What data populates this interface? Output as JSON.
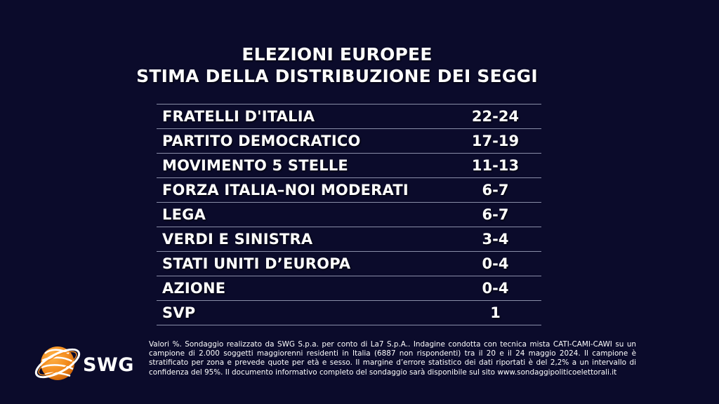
{
  "title": {
    "line1": "ELEZIONI EUROPEE",
    "line2": "STIMA DELLA DISTRIBUZIONE DEI SEGGI"
  },
  "rows": [
    {
      "party": "FRATELLI D'ITALIA",
      "seats": "22-24"
    },
    {
      "party": "PARTITO DEMOCRATICO",
      "seats": "17-19"
    },
    {
      "party": "MOVIMENTO 5 STELLE",
      "seats": "11-13"
    },
    {
      "party": "FORZA ITALIA–NOI MODERATI",
      "seats": "6-7"
    },
    {
      "party": "LEGA",
      "seats": "6-7"
    },
    {
      "party": "VERDI E SINISTRA",
      "seats": "3-4"
    },
    {
      "party": "STATI UNITI D’EUROPA",
      "seats": "0-4"
    },
    {
      "party": "AZIONE",
      "seats": "0-4"
    },
    {
      "party": "SVP",
      "seats": "1"
    }
  ],
  "logo": {
    "text": "SWG",
    "icon": "swg-globe-icon",
    "colors": {
      "orange": "#f28a1c",
      "white": "#ffffff"
    }
  },
  "footnote": "Valori %. Sondaggio realizzato da SWG S.p.a. per conto di La7 S.p.A.. Indagine condotta con tecnica mista CATI-CAMI-CAWI su un campione di 2.000 soggetti maggiorenni residenti in Italia (6887 non rispondenti) tra il 20 e il 24 maggio 2024. Il campione è stratificato per zona e prevede quote per età e sesso. Il margine d’errore statistico dei dati riportati è del 2,2% a un intervallo di confidenza del 95%. Il documento informativo completo del sondaggio sarà disponibile sul sito www.sondaggipoliticoelettorali.it",
  "colors": {
    "background": "#0b0b2b",
    "divider": "#8a8ea8",
    "text": "#ffffff"
  }
}
